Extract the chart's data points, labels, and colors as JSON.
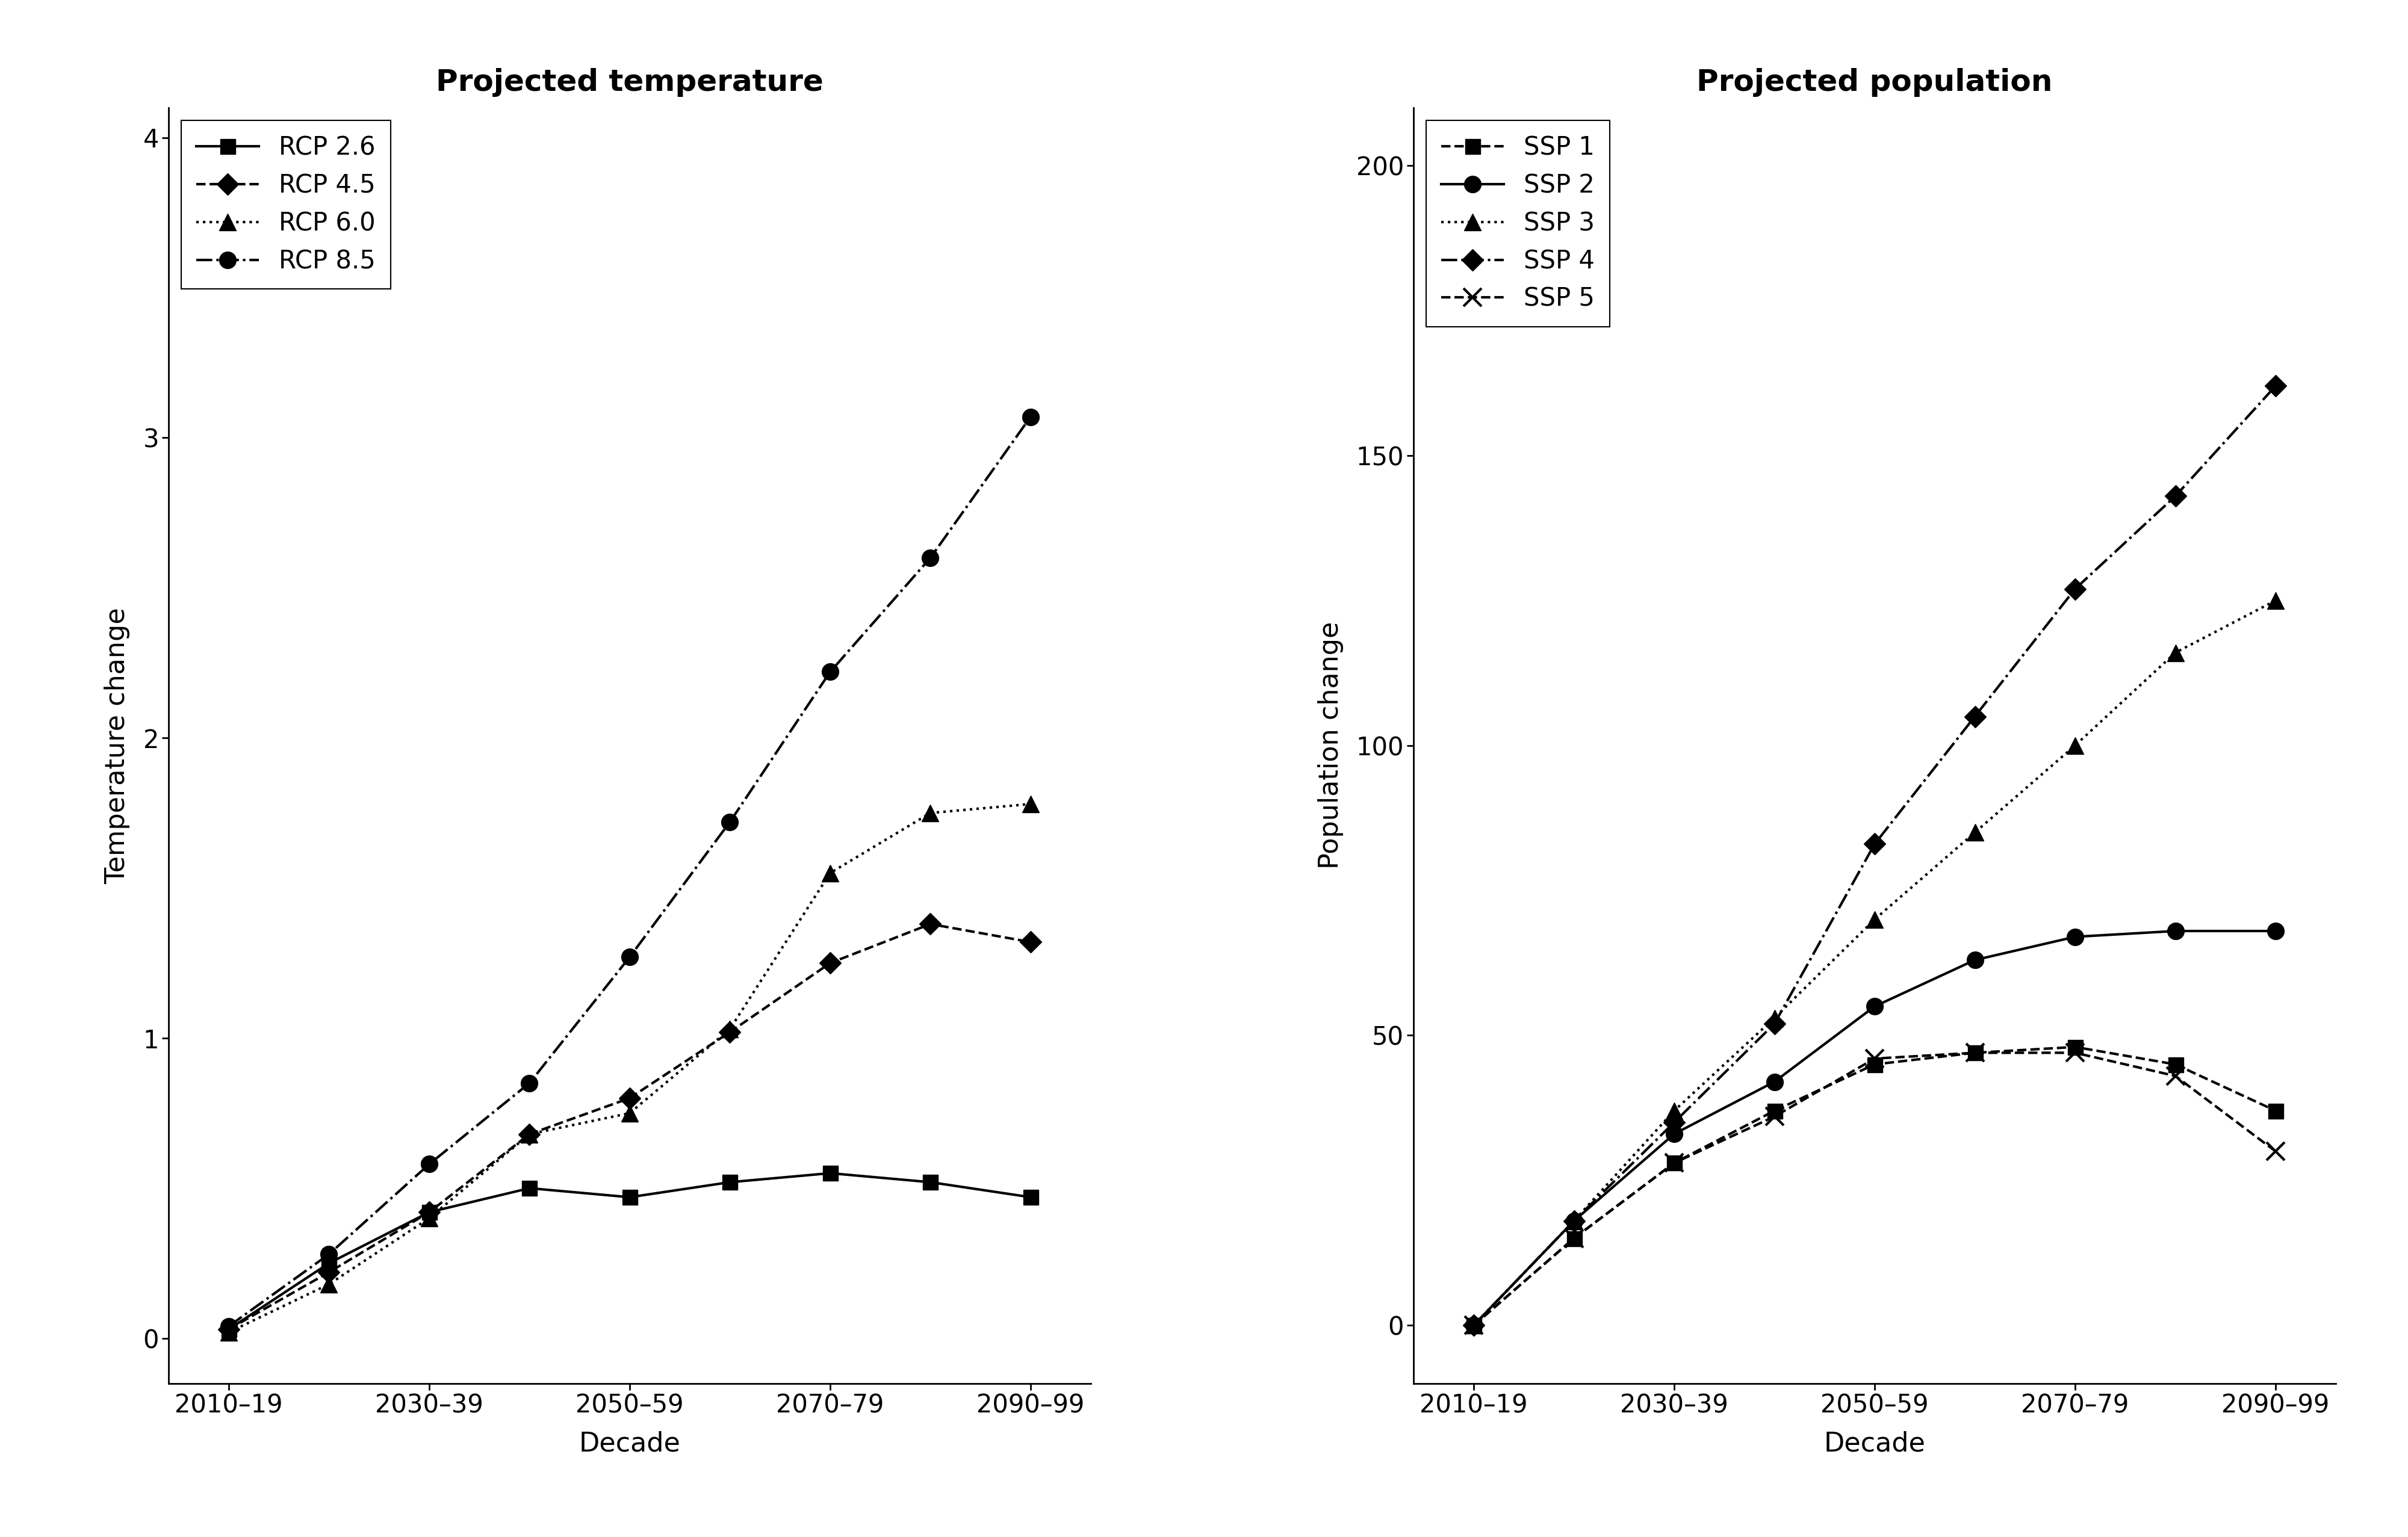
{
  "x_positions": [
    0,
    1,
    2,
    3,
    4,
    5,
    6,
    7,
    8
  ],
  "x_tick_labels": [
    "2010–19",
    "2030–39",
    "2050–59",
    "2070–79",
    "2090–99"
  ],
  "x_tick_positions": [
    0,
    2,
    4,
    6,
    8
  ],
  "temp_rcp26": [
    0.03,
    0.25,
    0.42,
    0.5,
    0.47,
    0.52,
    0.55,
    0.52,
    0.47
  ],
  "temp_rcp45": [
    0.03,
    0.22,
    0.42,
    0.68,
    0.8,
    1.02,
    1.25,
    1.38,
    1.32
  ],
  "temp_rcp60": [
    0.02,
    0.18,
    0.4,
    0.68,
    0.75,
    1.03,
    1.55,
    1.75,
    1.78
  ],
  "temp_rcp85": [
    0.04,
    0.28,
    0.58,
    0.85,
    1.27,
    1.72,
    2.22,
    2.6,
    3.07
  ],
  "pop_ssp1": [
    0.0,
    15.0,
    28.0,
    37.0,
    45.0,
    47.0,
    48.0,
    45.0,
    37.0
  ],
  "pop_ssp2": [
    0.0,
    18.0,
    33.0,
    42.0,
    55.0,
    63.0,
    67.0,
    68.0,
    68.0
  ],
  "pop_ssp3": [
    0.0,
    18.0,
    37.0,
    53.0,
    70.0,
    85.0,
    100.0,
    116.0,
    125.0
  ],
  "pop_ssp4": [
    0.0,
    18.0,
    35.0,
    52.0,
    83.0,
    105.0,
    127.0,
    143.0,
    162.0
  ],
  "pop_ssp5": [
    0.0,
    15.0,
    28.0,
    36.0,
    46.0,
    47.0,
    47.0,
    43.0,
    30.0
  ],
  "title_temp": "Projected temperature",
  "title_pop": "Projected population",
  "ylabel_temp": "Temperature change",
  "ylabel_pop": "Population change",
  "xlabel": "Decade",
  "ylim_temp": [
    -0.15,
    4.1
  ],
  "ylim_pop": [
    -10,
    210
  ],
  "yticks_temp": [
    0,
    1,
    2,
    3,
    4
  ],
  "yticks_pop": [
    0,
    50,
    100,
    150,
    200
  ],
  "bg_color": "#ffffff",
  "title_fontsize": 36,
  "label_fontsize": 32,
  "tick_fontsize": 30,
  "legend_fontsize": 30,
  "marker_size": 18,
  "linewidth": 3.0
}
